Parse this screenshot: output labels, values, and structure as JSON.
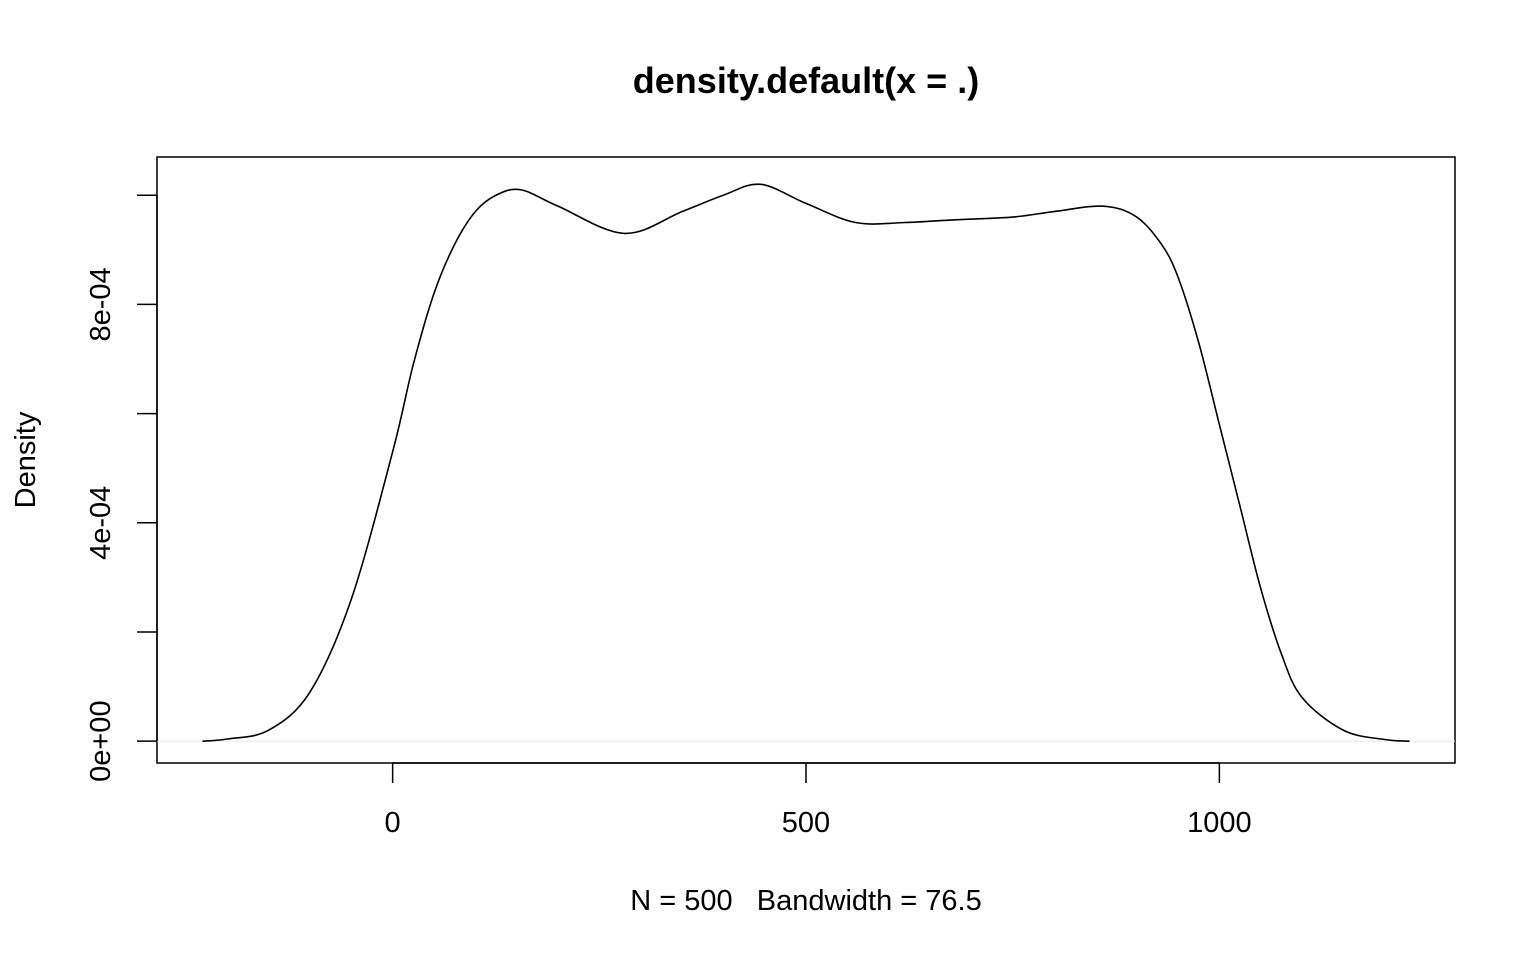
{
  "chart_data": {
    "type": "line",
    "title": "density.default(x = .)",
    "xlabel": "N = 500   Bandwidth = 76.5",
    "ylabel": "Density",
    "xlim": [
      -285,
      1285
    ],
    "ylim": [
      -4e-05,
      0.00107
    ],
    "x_ticks": [
      {
        "value": 0,
        "label": "0"
      },
      {
        "value": 500,
        "label": "500"
      },
      {
        "value": 1000,
        "label": "1000"
      }
    ],
    "y_ticks": [
      {
        "value": 0,
        "label": "0e+00"
      },
      {
        "value": 0.0002,
        "label": ""
      },
      {
        "value": 0.0004,
        "label": "4e-04"
      },
      {
        "value": 0.0006,
        "label": ""
      },
      {
        "value": 0.0008,
        "label": "8e-04"
      },
      {
        "value": 0.001,
        "label": ""
      }
    ],
    "grid": false,
    "baseline": 0,
    "series": [
      {
        "x": [
          -230,
          -200,
          -150,
          -100,
          -50,
          0,
          25,
          50,
          75,
          100,
          125,
          155,
          200,
          280,
          350,
          400,
          445,
          500,
          560,
          620,
          680,
          750,
          800,
          860,
          900,
          930,
          950,
          975,
          1000,
          1025,
          1050,
          1075,
          1100,
          1150,
          1200,
          1230
        ],
        "values": [
          0,
          4e-06,
          2e-05,
          9e-05,
          0.00026,
          0.00053,
          0.00069,
          0.00082,
          0.00091,
          0.00097,
          0.001,
          0.00101,
          0.00098,
          0.00093,
          0.00097,
          0.001,
          0.00102,
          0.000985,
          0.00095,
          0.00095,
          0.000955,
          0.00096,
          0.00097,
          0.00098,
          0.00096,
          0.00091,
          0.00085,
          0.00073,
          0.00058,
          0.00043,
          0.00028,
          0.00016,
          8e-05,
          2e-05,
          3e-06,
          0
        ]
      }
    ]
  }
}
